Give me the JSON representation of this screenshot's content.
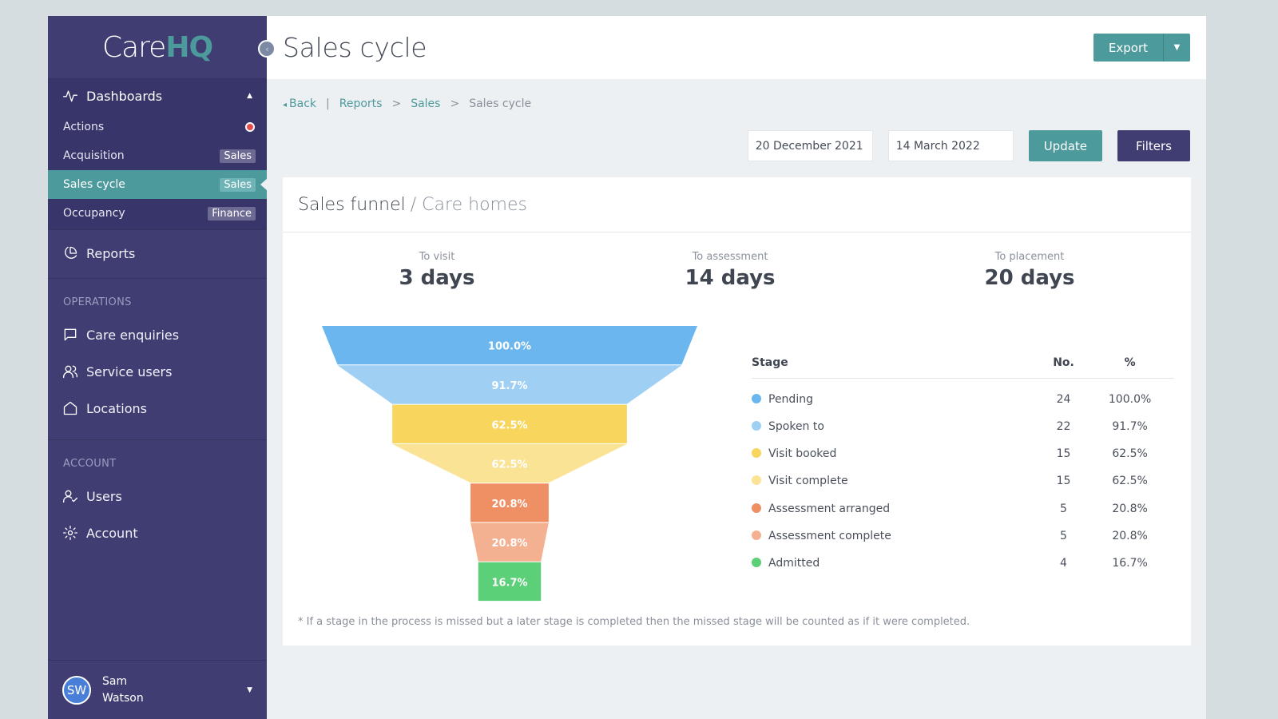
{
  "brand": {
    "care": "Care",
    "hq": "HQ"
  },
  "sidebar": {
    "dashboards_label": "Dashboards",
    "dashboard_items": [
      {
        "label": "Actions",
        "tag": ""
      },
      {
        "label": "Acquisition",
        "tag": "Sales"
      },
      {
        "label": "Sales cycle",
        "tag": "Sales"
      },
      {
        "label": "Occupancy",
        "tag": "Finance"
      }
    ],
    "reports_label": "Reports",
    "operations_label": "OPERATIONS",
    "operations_items": [
      "Care enquiries",
      "Service users",
      "Locations"
    ],
    "account_label": "ACCOUNT",
    "account_items": [
      "Users",
      "Account"
    ],
    "user": {
      "initials": "SW",
      "first": "Sam",
      "last": "Watson"
    }
  },
  "header": {
    "title": "Sales cycle",
    "export_label": "Export"
  },
  "breadcrumb": {
    "back": "Back",
    "sep1": "|",
    "reports": "Reports",
    "sep2": ">",
    "sales": "Sales",
    "sep3": ">",
    "current": "Sales cycle"
  },
  "filters": {
    "start_date": "20 December 2021",
    "end_date": "14 March 2022",
    "update_label": "Update",
    "filters_label": "Filters"
  },
  "card": {
    "title": "Sales funnel",
    "subtitle": "/ Care homes",
    "stats": [
      {
        "label": "To visit",
        "value": "3 days"
      },
      {
        "label": "To assessment",
        "value": "14 days"
      },
      {
        "label": "To placement",
        "value": "20 days"
      }
    ],
    "table_headers": {
      "stage": "Stage",
      "number": "No.",
      "percent": "%"
    },
    "footnote": "* If a stage in the process is missed but a later stage is completed then the missed stage will be counted as if it were completed."
  },
  "chart_data": {
    "type": "funnel",
    "stages": [
      {
        "name": "Pending",
        "count": 24,
        "percent": 100.0,
        "label": "100.0%",
        "color": "#6bb6ee"
      },
      {
        "name": "Spoken to",
        "count": 22,
        "percent": 91.7,
        "label": "91.7%",
        "color": "#9fd0f4"
      },
      {
        "name": "Visit booked",
        "count": 15,
        "percent": 62.5,
        "label": "62.5%",
        "color": "#f8d55c"
      },
      {
        "name": "Visit complete",
        "count": 15,
        "percent": 62.5,
        "label": "62.5%",
        "color": "#fae395"
      },
      {
        "name": "Assessment arranged",
        "count": 5,
        "percent": 20.8,
        "label": "20.8%",
        "color": "#ef8f64"
      },
      {
        "name": "Assessment complete",
        "count": 5,
        "percent": 20.8,
        "label": "20.8%",
        "color": "#f4b192"
      },
      {
        "name": "Admitted",
        "count": 4,
        "percent": 16.7,
        "label": "16.7%",
        "color": "#5ccf79"
      }
    ]
  }
}
